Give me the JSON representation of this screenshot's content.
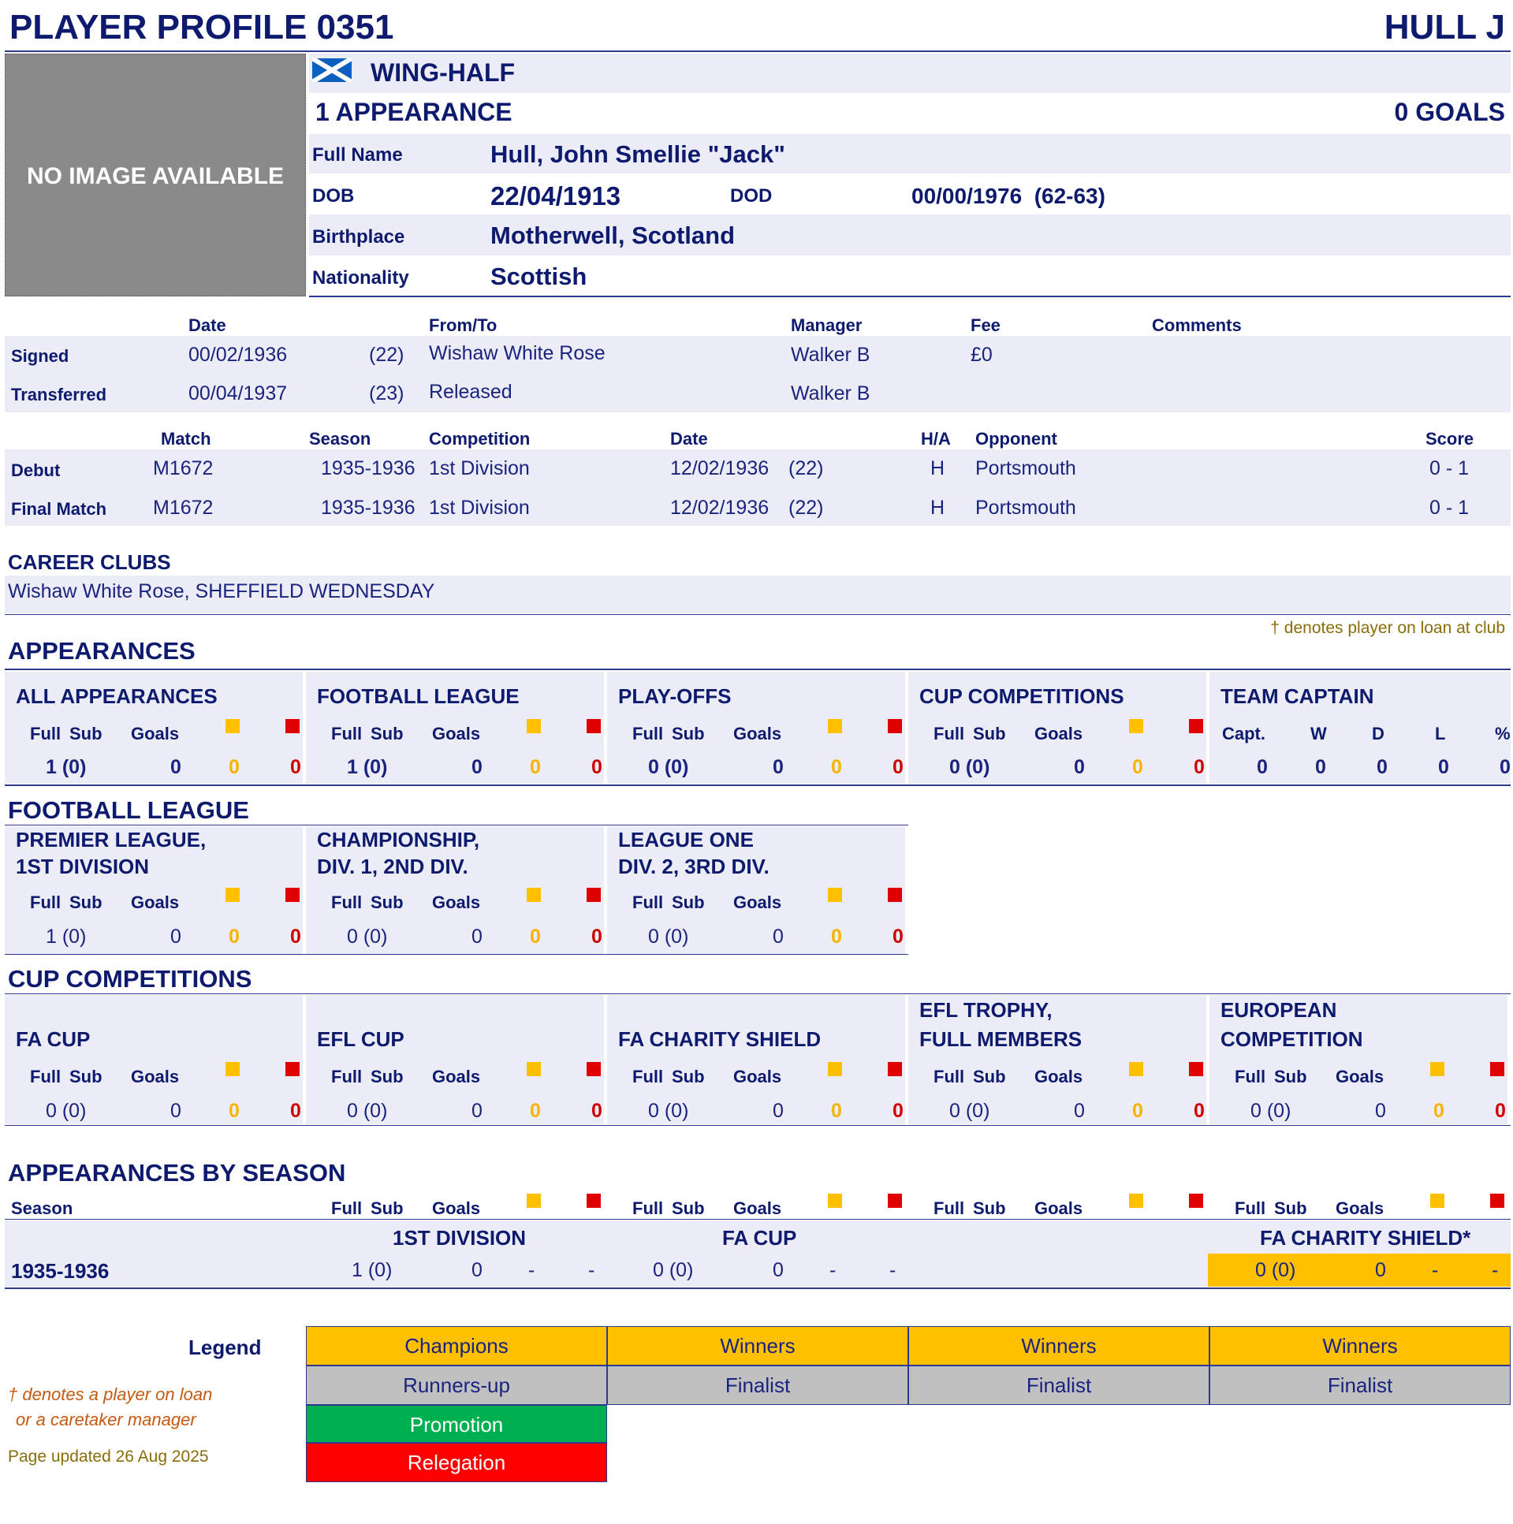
{
  "header": {
    "title": "PLAYER PROFILE 0351",
    "surname": "HULL J"
  },
  "photo": {
    "placeholder": "NO IMAGE AVAILABLE"
  },
  "profile": {
    "flag": "scotland-flag-icon",
    "position": "WING-HALF",
    "appearances": "1 APPEARANCE",
    "goals": "0 GOALS",
    "full_name_label": "Full Name",
    "full_name": "Hull, John Smellie \"Jack\"",
    "dob_label": "DOB",
    "dob": "22/04/1913",
    "dod_label": "DOD",
    "dod": "00/00/1976  (62-63)",
    "birthplace_label": "Birthplace",
    "birthplace": "Motherwell, Scotland",
    "nationality_label": "Nationality",
    "nationality": "Scottish"
  },
  "transfers": {
    "headers": {
      "date": "Date",
      "from_to": "From/To",
      "manager": "Manager",
      "fee": "Fee",
      "comments": "Comments"
    },
    "rows": [
      {
        "label": "Signed",
        "date": "00/02/1936",
        "age": "(22)",
        "from_to": "Wishaw White Rose",
        "manager": "Walker B",
        "fee": "£0",
        "comments": ""
      },
      {
        "label": "Transferred",
        "date": "00/04/1937",
        "age": "(23)",
        "from_to": "Released",
        "manager": "Walker B",
        "fee": "",
        "comments": ""
      }
    ]
  },
  "matches": {
    "headers": {
      "match": "Match",
      "season": "Season",
      "competition": "Competition",
      "date": "Date",
      "ha": "H/A",
      "opponent": "Opponent",
      "score": "Score"
    },
    "rows": [
      {
        "label": "Debut",
        "match": "M1672",
        "season": "1935-1936",
        "competition": "1st Division",
        "date": "12/02/1936",
        "age": "(22)",
        "ha": "H",
        "opponent": "Portsmouth",
        "score": "0 - 1"
      },
      {
        "label": "Final Match",
        "match": "M1672",
        "season": "1935-1936",
        "competition": "1st Division",
        "date": "12/02/1936",
        "age": "(22)",
        "ha": "H",
        "opponent": "Portsmouth",
        "score": "0 - 1"
      }
    ]
  },
  "career": {
    "title": "CAREER CLUBS",
    "clubs": "Wishaw White Rose, SHEFFIELD WEDNESDAY",
    "loan_note": "† denotes player on loan at club"
  },
  "col_labels": {
    "full": "Full",
    "sub": "Sub",
    "goals": "Goals",
    "capt": "Capt.",
    "w": "W",
    "d": "D",
    "l": "L",
    "pct": "%"
  },
  "appearances": {
    "title": "APPEARANCES",
    "boxes": [
      {
        "name": "ALL APPEARANCES",
        "apps": "1 (0)",
        "goals": "0",
        "yellow": "0",
        "red": "0"
      },
      {
        "name": "FOOTBALL LEAGUE",
        "apps": "1 (0)",
        "goals": "0",
        "yellow": "0",
        "red": "0"
      },
      {
        "name": "PLAY-OFFS",
        "apps": "0 (0)",
        "goals": "0",
        "yellow": "0",
        "red": "0"
      },
      {
        "name": "CUP COMPETITIONS",
        "apps": "0 (0)",
        "goals": "0",
        "yellow": "0",
        "red": "0"
      }
    ],
    "captain": {
      "name": "TEAM CAPTAIN",
      "capt": "0",
      "w": "0",
      "d": "0",
      "l": "0",
      "pct": "0"
    }
  },
  "football_league": {
    "title": "FOOTBALL LEAGUE",
    "boxes": [
      {
        "name1": "PREMIER LEAGUE,",
        "name2": "1ST DIVISION",
        "apps": "1 (0)",
        "goals": "0",
        "yellow": "0",
        "red": "0"
      },
      {
        "name1": "CHAMPIONSHIP,",
        "name2": "DIV. 1, 2ND DIV.",
        "apps": "0 (0)",
        "goals": "0",
        "yellow": "0",
        "red": "0"
      },
      {
        "name1": "LEAGUE ONE",
        "name2": "DIV. 2, 3RD DIV.",
        "apps": "0 (0)",
        "goals": "0",
        "yellow": "0",
        "red": "0"
      }
    ]
  },
  "cup_competitions": {
    "title": "CUP COMPETITIONS",
    "boxes": [
      {
        "name1": "",
        "name2": "FA CUP",
        "apps": "0 (0)",
        "goals": "0",
        "yellow": "0",
        "red": "0"
      },
      {
        "name1": "",
        "name2": "EFL CUP",
        "apps": "0 (0)",
        "goals": "0",
        "yellow": "0",
        "red": "0"
      },
      {
        "name1": "",
        "name2": "FA CHARITY SHIELD",
        "apps": "0 (0)",
        "goals": "0",
        "yellow": "0",
        "red": "0"
      },
      {
        "name1": "EFL TROPHY,",
        "name2": "FULL MEMBERS",
        "apps": "0 (0)",
        "goals": "0",
        "yellow": "0",
        "red": "0"
      },
      {
        "name1": "EUROPEAN",
        "name2": "COMPETITION",
        "apps": "0 (0)",
        "goals": "0",
        "yellow": "0",
        "red": "0"
      }
    ]
  },
  "by_season": {
    "title": "APPEARANCES BY SEASON",
    "season_label": "Season",
    "comp1": "1ST DIVISION",
    "comp2": "FA CUP",
    "comp4": "FA CHARITY SHIELD*",
    "season": "1935-1936",
    "c1": {
      "apps": "1 (0)",
      "goals": "0",
      "yellow": "-",
      "red": "-"
    },
    "c2": {
      "apps": "0 (0)",
      "goals": "0",
      "yellow": "-",
      "red": "-"
    },
    "c4": {
      "apps": "0 (0)",
      "goals": "0",
      "yellow": "-",
      "red": "-"
    }
  },
  "legend": {
    "title": "Legend",
    "champions": "Champions",
    "winners": "Winners",
    "runners_up": "Runners-up",
    "finalist": "Finalist",
    "promotion": "Promotion",
    "relegation": "Relegation",
    "loan_note1": "† denotes a player on loan",
    "loan_note2": "or a caretaker manager",
    "updated": "Page updated 26 Aug 2025",
    "colors": {
      "gold": "#ffc000",
      "grey": "#c0c0c0",
      "green": "#00b050",
      "red": "#ff0000"
    }
  }
}
